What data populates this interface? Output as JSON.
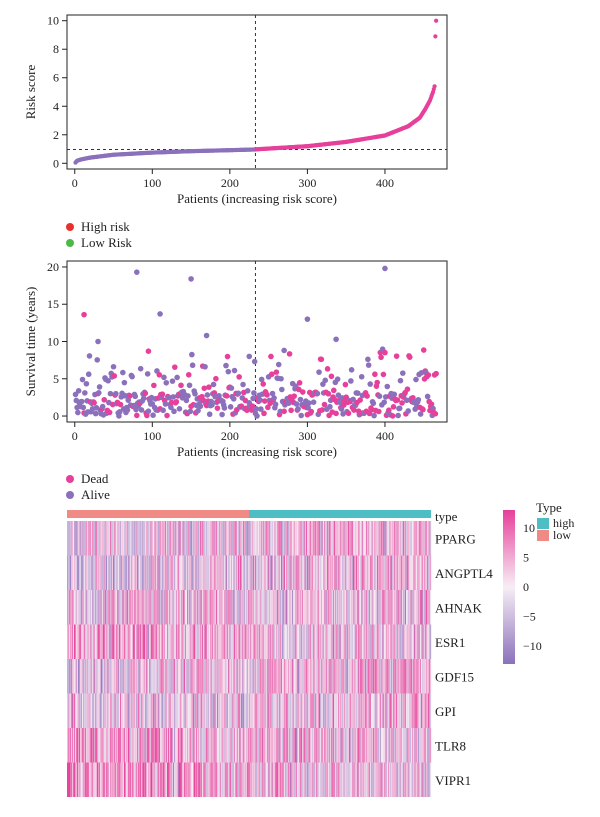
{
  "chart_data": [
    {
      "type": "scatter",
      "xlabel": "Patients (increasing risk score)",
      "ylabel": "Risk score",
      "xlim": [
        -10,
        480
      ],
      "ylim": [
        -0.4,
        10.4
      ],
      "xticks": [
        0,
        100,
        200,
        300,
        400
      ],
      "yticks": [
        0,
        2,
        4,
        6,
        8,
        10
      ],
      "cutoff_x": 233,
      "cutoff_y": 0.97,
      "n_patients": 466,
      "legend": [
        {
          "name": "High risk",
          "color": "#e8312a"
        },
        {
          "name": "Low Risk",
          "color": "#4db848"
        }
      ],
      "series": [
        {
          "name": "Low risk",
          "color": "#8b71bb",
          "x_range": [
            1,
            233
          ],
          "anchors": [
            [
              1,
              0.05
            ],
            [
              3,
              0.18
            ],
            [
              8,
              0.27
            ],
            [
              20,
              0.4
            ],
            [
              50,
              0.6
            ],
            [
              100,
              0.75
            ],
            [
              150,
              0.85
            ],
            [
              200,
              0.92
            ],
            [
              233,
              0.97
            ]
          ]
        },
        {
          "name": "High risk",
          "color": "#e6409a",
          "x_range": [
            234,
            466
          ],
          "anchors": [
            [
              234,
              0.98
            ],
            [
              300,
              1.2
            ],
            [
              350,
              1.5
            ],
            [
              400,
              1.95
            ],
            [
              430,
              2.6
            ],
            [
              445,
              3.2
            ],
            [
              452,
              3.8
            ],
            [
              458,
              4.4
            ],
            [
              462,
              5.0
            ],
            [
              464,
              5.4
            ],
            [
              465,
              8.9
            ],
            [
              466,
              10.0
            ]
          ]
        }
      ]
    },
    {
      "type": "scatter",
      "xlabel": "Patients (increasing risk score)",
      "ylabel": "Survival time (years)",
      "xlim": [
        -10,
        480
      ],
      "ylim": [
        -0.8,
        20.8
      ],
      "xticks": [
        0,
        100,
        200,
        300,
        400
      ],
      "yticks": [
        0,
        5,
        10,
        15,
        20
      ],
      "cutoff_x": 233,
      "legend": [
        {
          "name": "Dead",
          "color": "#e6409a"
        },
        {
          "name": "Alive",
          "color": "#8b71bb"
        }
      ],
      "notable_points": [
        {
          "x": 12,
          "y": 13.6,
          "status": "Dead"
        },
        {
          "x": 80,
          "y": 19.3,
          "status": "Alive"
        },
        {
          "x": 110,
          "y": 13.7,
          "status": "Alive"
        },
        {
          "x": 150,
          "y": 18.4,
          "status": "Alive"
        },
        {
          "x": 170,
          "y": 10.8,
          "status": "Alive"
        },
        {
          "x": 300,
          "y": 13.0,
          "status": "Alive"
        },
        {
          "x": 400,
          "y": 19.8,
          "status": "Alive"
        },
        {
          "x": 337,
          "y": 10.3,
          "status": "Alive"
        },
        {
          "x": 30,
          "y": 10.0,
          "status": "Alive"
        },
        {
          "x": 225,
          "y": 8.0,
          "status": "Alive"
        },
        {
          "x": 270,
          "y": 8.8,
          "status": "Alive"
        },
        {
          "x": 95,
          "y": 8.7,
          "status": "Dead"
        }
      ]
    },
    {
      "type": "heatmap",
      "rows": [
        "PPARG",
        "ANGPTL4",
        "AHNAK",
        "ESR1",
        "GDF15",
        "GPI",
        "TLR8",
        "VIPR1"
      ],
      "columns": 466,
      "annotation_label": "type",
      "annotation_split": 233,
      "annotation_legend_title": "Type",
      "annotation_legend": [
        {
          "name": "high",
          "color": "#4dbec4"
        },
        {
          "name": "low",
          "color": "#f08a84"
        }
      ],
      "color_range": [
        -13,
        13
      ],
      "colorbar_ticks": [
        10,
        5,
        0,
        -5,
        -10
      ],
      "colorbar_tick_labels": [
        "10",
        "5",
        "0",
        "−5",
        "−10"
      ],
      "color_high": "#e6409a",
      "color_mid": "#f7eef5",
      "color_low": "#8b71bb"
    }
  ]
}
